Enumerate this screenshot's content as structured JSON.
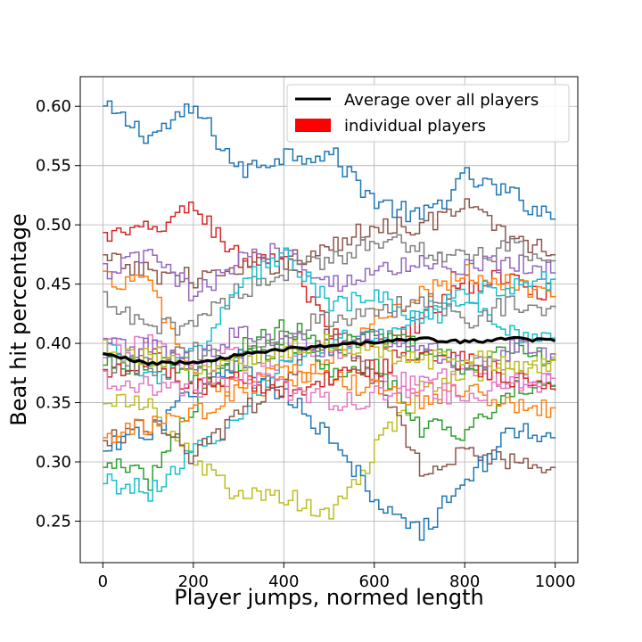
{
  "chart_data": {
    "type": "line",
    "title": "",
    "xlabel": "Player jumps, normed length",
    "ylabel": "Beat hit percentage",
    "xlim": [
      -50,
      1050
    ],
    "ylim": [
      0.215,
      0.625
    ],
    "xticks": [
      0,
      200,
      400,
      600,
      800,
      1000
    ],
    "xtick_labels": [
      "0",
      "200",
      "400",
      "600",
      "800",
      "1000"
    ],
    "yticks": [
      0.25,
      0.3,
      0.35,
      0.4,
      0.45,
      0.5,
      0.55,
      0.6
    ],
    "ytick_labels": [
      "0.25",
      "0.30",
      "0.35",
      "0.40",
      "0.45",
      "0.50",
      "0.55",
      "0.60"
    ],
    "grid": true,
    "legend_position": "top-right",
    "legend": [
      {
        "label": "Average over all players",
        "color": "#000000",
        "marker": "line"
      },
      {
        "label": "individual players",
        "color": "#ff0000",
        "marker": "patch"
      }
    ],
    "x": [
      0,
      100,
      200,
      300,
      400,
      500,
      600,
      700,
      800,
      900,
      1000
    ],
    "series": [
      {
        "color": "#1f77b4",
        "values": [
          0.598,
          0.575,
          0.598,
          0.545,
          0.56,
          0.56,
          0.52,
          0.505,
          0.54,
          0.525,
          0.505
        ]
      },
      {
        "color": "#d62728",
        "values": [
          0.49,
          0.495,
          0.515,
          0.47,
          0.475,
          0.405,
          0.395,
          0.42,
          0.45,
          0.455,
          0.44
        ]
      },
      {
        "color": "#8c564b",
        "values": [
          0.47,
          0.46,
          0.455,
          0.46,
          0.47,
          0.48,
          0.5,
          0.5,
          0.515,
          0.49,
          0.475
        ]
      },
      {
        "color": "#ff7f0e",
        "values": [
          0.455,
          0.45,
          0.37,
          0.36,
          0.365,
          0.385,
          0.42,
          0.445,
          0.46,
          0.45,
          0.44
        ]
      },
      {
        "color": "#9467bd",
        "values": [
          0.46,
          0.475,
          0.44,
          0.47,
          0.48,
          0.45,
          0.46,
          0.47,
          0.465,
          0.47,
          0.46
        ]
      },
      {
        "color": "#7f7f7f",
        "values": [
          0.435,
          0.41,
          0.42,
          0.445,
          0.46,
          0.47,
          0.49,
          0.48,
          0.47,
          0.48,
          0.47
        ]
      },
      {
        "color": "#17becf",
        "values": [
          0.4,
          0.37,
          0.39,
          0.45,
          0.475,
          0.43,
          0.44,
          0.42,
          0.43,
          0.41,
          0.405
        ]
      },
      {
        "color": "#e377c2",
        "values": [
          0.395,
          0.4,
          0.38,
          0.39,
          0.385,
          0.395,
          0.37,
          0.365,
          0.38,
          0.37,
          0.365
        ]
      },
      {
        "color": "#bcbd22",
        "values": [
          0.355,
          0.345,
          0.3,
          0.27,
          0.27,
          0.255,
          0.31,
          0.36,
          0.375,
          0.38,
          0.39
        ]
      },
      {
        "color": "#2ca02c",
        "values": [
          0.3,
          0.285,
          0.35,
          0.385,
          0.4,
          0.375,
          0.385,
          0.33,
          0.325,
          0.36,
          0.365
        ]
      },
      {
        "color": "#17becf",
        "values": [
          0.285,
          0.275,
          0.31,
          0.34,
          0.385,
          0.4,
          0.41,
          0.425,
          0.44,
          0.45,
          0.455
        ]
      },
      {
        "color": "#8c564b",
        "values": [
          0.32,
          0.33,
          0.305,
          0.34,
          0.375,
          0.41,
          0.37,
          0.295,
          0.31,
          0.3,
          0.295
        ]
      },
      {
        "color": "#1f77b4",
        "values": [
          0.31,
          0.325,
          0.36,
          0.39,
          0.355,
          0.32,
          0.27,
          0.24,
          0.285,
          0.325,
          0.32
        ]
      },
      {
        "color": "#ff7f0e",
        "values": [
          0.32,
          0.33,
          0.34,
          0.36,
          0.38,
          0.37,
          0.36,
          0.35,
          0.36,
          0.35,
          0.345
        ]
      },
      {
        "color": "#2ca02c",
        "values": [
          0.38,
          0.385,
          0.37,
          0.395,
          0.415,
          0.395,
          0.405,
          0.395,
          0.38,
          0.395,
          0.385
        ]
      },
      {
        "color": "#d62728",
        "values": [
          0.375,
          0.39,
          0.36,
          0.37,
          0.36,
          0.37,
          0.38,
          0.395,
          0.385,
          0.37,
          0.36
        ]
      },
      {
        "color": "#9467bd",
        "values": [
          0.4,
          0.395,
          0.385,
          0.41,
          0.405,
          0.395,
          0.405,
          0.4,
          0.38,
          0.395,
          0.39
        ]
      },
      {
        "color": "#7f7f7f",
        "values": [
          0.385,
          0.38,
          0.395,
          0.38,
          0.41,
          0.42,
          0.425,
          0.44,
          0.42,
          0.435,
          0.43
        ]
      },
      {
        "color": "#e377c2",
        "values": [
          0.37,
          0.365,
          0.36,
          0.375,
          0.36,
          0.35,
          0.355,
          0.36,
          0.355,
          0.365,
          0.37
        ]
      },
      {
        "color": "#bcbd22",
        "values": [
          0.395,
          0.39,
          0.38,
          0.385,
          0.395,
          0.4,
          0.395,
          0.385,
          0.39,
          0.38,
          0.385
        ]
      }
    ],
    "average": {
      "name": "Average over all players",
      "color": "#000000",
      "values": [
        0.391,
        0.383,
        0.384,
        0.39,
        0.395,
        0.398,
        0.401,
        0.404,
        0.401,
        0.404,
        0.402
      ]
    }
  }
}
